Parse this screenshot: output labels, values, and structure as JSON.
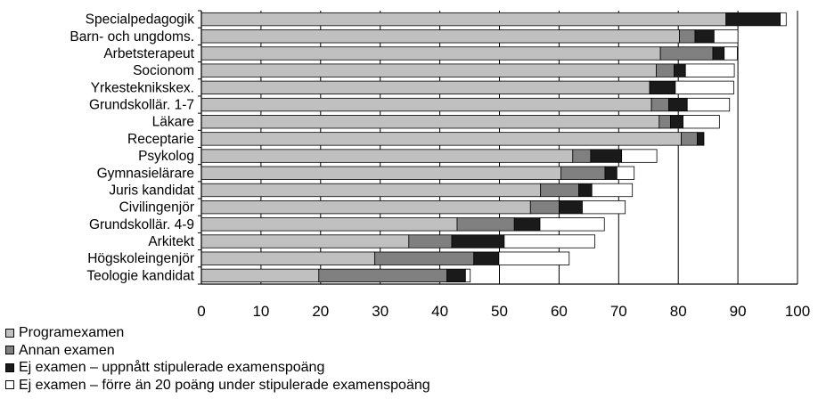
{
  "chart_data": {
    "type": "bar",
    "orientation": "horizontal",
    "stacked": true,
    "categories": [
      "Specialpedagogik",
      "Barn- och ungdoms.",
      "Arbetsterapeut",
      "Socionom",
      "Yrkesteknikskex.",
      "Grundskollär. 1-7",
      "Läkare",
      "Receptarie",
      "Psykolog",
      "Gymnasielärare",
      "Juris kandidat",
      "Civilingenjör",
      "Grundskollär. 4-9",
      "Arkitekt",
      "Högskoleingenjör",
      "Teologie kandidat"
    ],
    "series": [
      {
        "name": "Programexamen",
        "color": "#c0c0c0",
        "values": [
          88.0,
          80.2,
          77.0,
          76.3,
          75.2,
          75.5,
          76.8,
          80.5,
          62.3,
          60.3,
          56.9,
          55.2,
          42.9,
          34.8,
          29.1,
          19.7
        ]
      },
      {
        "name": "Annan examen",
        "color": "#808080",
        "values": [
          0.0,
          2.6,
          8.8,
          3.0,
          0.0,
          2.9,
          1.9,
          2.7,
          3.0,
          7.4,
          6.4,
          4.8,
          9.6,
          7.2,
          16.6,
          21.5
        ]
      },
      {
        "name": "Ej examen – uppnått stipulerade examenspoäng",
        "color": "#1a1a1a",
        "values": [
          9.1,
          3.2,
          1.9,
          1.9,
          4.3,
          3.1,
          2.1,
          1.1,
          5.2,
          2.0,
          2.2,
          3.9,
          4.3,
          8.8,
          4.2,
          3.1
        ]
      },
      {
        "name": "Ej examen – förre än 20 poäng under stipulerade examenspoäng",
        "color": "#ffffff",
        "values": [
          1.0,
          4.0,
          2.2,
          8.2,
          9.8,
          7.1,
          6.1,
          0.0,
          5.9,
          2.9,
          6.8,
          7.2,
          10.8,
          15.2,
          11.8,
          0.8
        ]
      }
    ],
    "x_ticks": [
      "0",
      "10",
      "20",
      "30",
      "40",
      "50",
      "60",
      "70",
      "80",
      "90",
      "100"
    ],
    "xlim": [
      0,
      100
    ],
    "grid": "vertical",
    "legend_position": "bottom-left"
  }
}
